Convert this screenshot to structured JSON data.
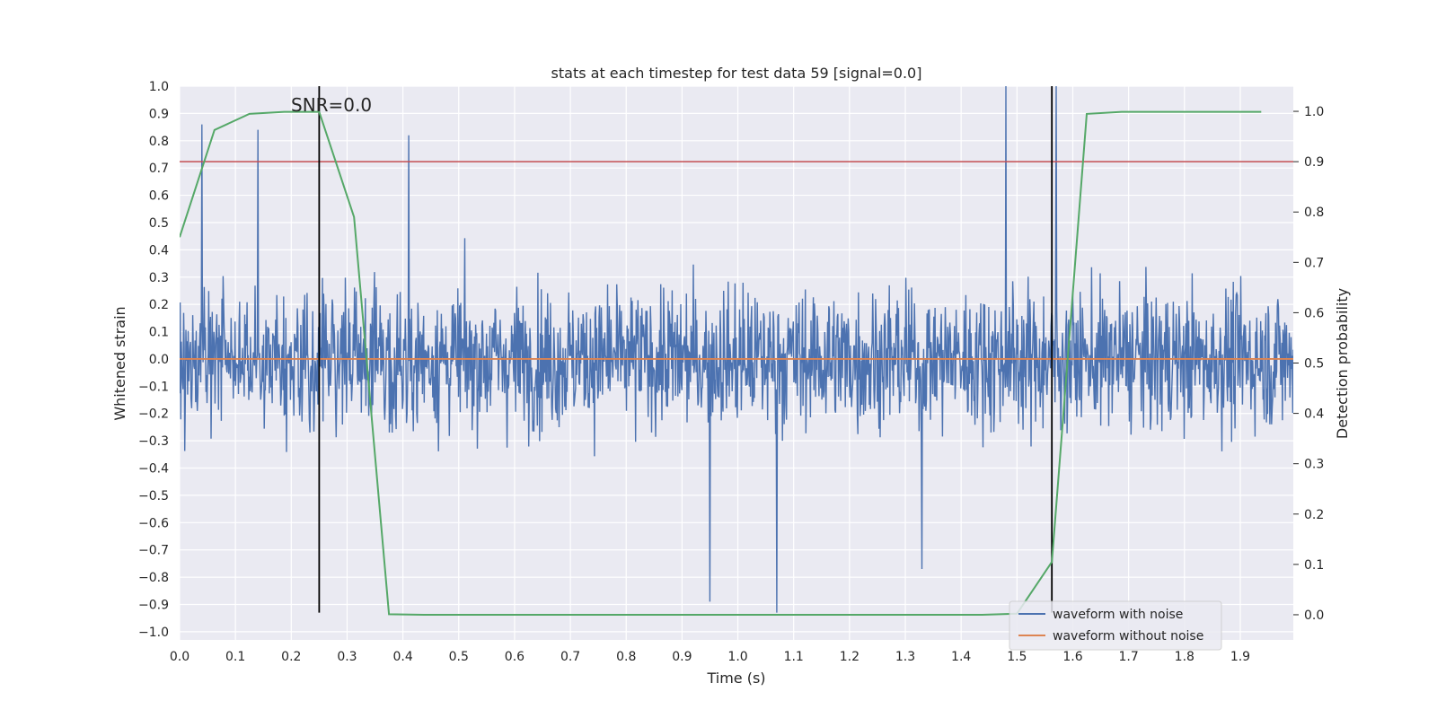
{
  "chart_data": {
    "type": "line",
    "title": "stats at each timestep for test data 59 [signal=0.0]",
    "xlabel": "Time (s)",
    "ylabel": "Whitened strain",
    "y2label": "Detection probability",
    "annotation": "SNR=0.0",
    "xlim": [
      0.0,
      1.995
    ],
    "ylim": [
      -1.03,
      1.0
    ],
    "y2lim": [
      -0.05,
      1.05
    ],
    "x_ticks": [
      "0.0",
      "0.1",
      "0.2",
      "0.3",
      "0.4",
      "0.5",
      "0.6",
      "0.7",
      "0.8",
      "0.9",
      "1.0",
      "1.1",
      "1.2",
      "1.3",
      "1.4",
      "1.5",
      "1.6",
      "1.7",
      "1.8",
      "1.9"
    ],
    "y_ticks": [
      "1.0",
      "0.9",
      "0.8",
      "0.7",
      "0.6",
      "0.5",
      "0.4",
      "0.3",
      "0.2",
      "0.1",
      "0.0",
      "−0.1",
      "−0.2",
      "−0.3",
      "−0.4",
      "−0.5",
      "−0.6",
      "−0.7",
      "−0.8",
      "−0.9",
      "−1.0"
    ],
    "y2_ticks": [
      "1.0",
      "0.9",
      "0.8",
      "0.7",
      "0.6",
      "0.5",
      "0.4",
      "0.3",
      "0.2",
      "0.1",
      "0.0"
    ],
    "grid": true,
    "legend_position": "bottom-right",
    "legend": [
      "waveform with noise",
      "waveform without noise"
    ],
    "series": [
      {
        "name": "waveform with noise",
        "color": "#4c72b0",
        "axis": "left",
        "description": "dense random noise, sampled at high rate",
        "peaks": [
          {
            "x": 0.04,
            "y": 0.86
          },
          {
            "x": 0.14,
            "y": 0.84
          },
          {
            "x": 0.41,
            "y": 0.82
          },
          {
            "x": 1.48,
            "y": 1.0
          },
          {
            "x": 1.57,
            "y": 1.0
          },
          {
            "x": 1.07,
            "y": -0.93
          },
          {
            "x": 0.95,
            "y": -0.89
          },
          {
            "x": 1.33,
            "y": -0.77
          }
        ]
      },
      {
        "name": "waveform without noise",
        "color": "#dd8452",
        "axis": "left",
        "x": [
          0.0,
          1.995
        ],
        "y": [
          0.0,
          0.0
        ]
      },
      {
        "name": "Detection probability",
        "color": "#55a868",
        "axis": "right",
        "x": [
          0.0,
          0.0625,
          0.125,
          0.1875,
          0.25,
          0.3125,
          0.375,
          0.4375,
          0.5,
          1.4375,
          1.5,
          1.5625,
          1.625,
          1.6875,
          1.75,
          1.8125,
          1.875,
          1.9375
        ],
        "y": [
          0.75,
          0.963,
          0.995,
          0.999,
          0.999,
          0.79,
          0.001,
          0.0,
          0.0,
          0.0,
          0.002,
          0.105,
          0.995,
          0.999,
          0.999,
          0.999,
          0.999,
          0.999
        ]
      }
    ],
    "threshold": {
      "axis": "right",
      "y": 0.9,
      "color": "#c44e52"
    },
    "vlines": [
      {
        "x": 0.25,
        "y_from": -0.93,
        "y_to": 1.0,
        "color": "#000000"
      },
      {
        "x": 1.5625,
        "y_from": -0.93,
        "y_to": 1.0,
        "color": "#000000"
      }
    ],
    "colors": {
      "background": "#eaeaf2",
      "grid": "#ffffff"
    }
  }
}
